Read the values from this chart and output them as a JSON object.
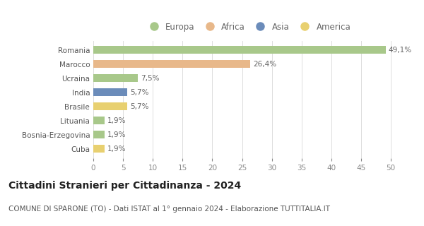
{
  "categories": [
    "Romania",
    "Marocco",
    "Ucraina",
    "India",
    "Brasile",
    "Lituania",
    "Bosnia-Erzegovina",
    "Cuba"
  ],
  "values": [
    49.1,
    26.4,
    7.5,
    5.7,
    5.7,
    1.9,
    1.9,
    1.9
  ],
  "labels": [
    "49,1%",
    "26,4%",
    "7,5%",
    "5,7%",
    "5,7%",
    "1,9%",
    "1,9%",
    "1,9%"
  ],
  "colors": [
    "#a8c88a",
    "#e8b88a",
    "#a8c88a",
    "#6b8cba",
    "#e8d070",
    "#a8c88a",
    "#a8c88a",
    "#e8d070"
  ],
  "legend_labels": [
    "Europa",
    "Africa",
    "Asia",
    "America"
  ],
  "legend_colors": [
    "#a8c88a",
    "#e8b88a",
    "#6b8cba",
    "#e8d070"
  ],
  "xlim": [
    0,
    52
  ],
  "xticks": [
    0,
    5,
    10,
    15,
    20,
    25,
    30,
    35,
    40,
    45,
    50
  ],
  "title": "Cittadini Stranieri per Cittadinanza - 2024",
  "subtitle": "COMUNE DI SPARONE (TO) - Dati ISTAT al 1° gennaio 2024 - Elaborazione TUTTITALIA.IT",
  "title_fontsize": 10,
  "subtitle_fontsize": 7.5,
  "label_fontsize": 7.5,
  "tick_fontsize": 7.5,
  "legend_fontsize": 8.5,
  "bar_height": 0.55,
  "background_color": "#ffffff",
  "grid_color": "#dddddd"
}
